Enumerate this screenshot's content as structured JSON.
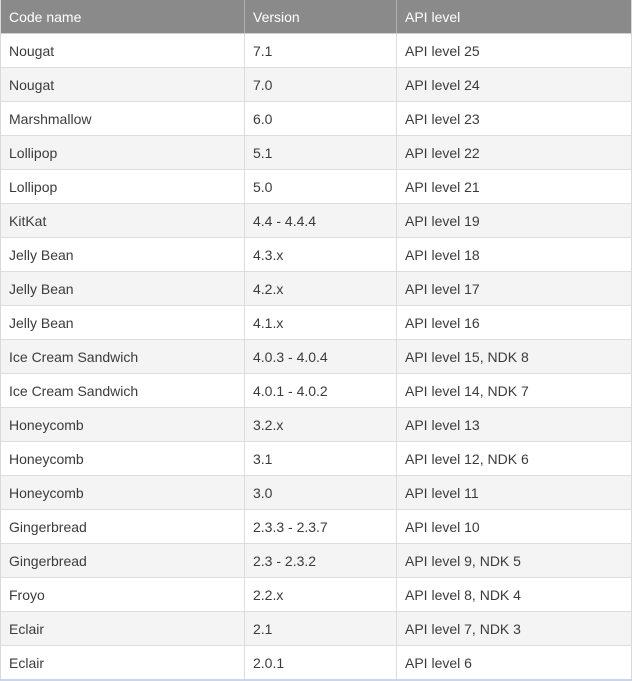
{
  "table": {
    "headers": [
      "Code name",
      "Version",
      "API level"
    ],
    "rows": [
      [
        "Nougat",
        "7.1",
        "API level 25"
      ],
      [
        "Nougat",
        "7.0",
        "API level 24"
      ],
      [
        "Marshmallow",
        "6.0",
        "API level 23"
      ],
      [
        "Lollipop",
        "5.1",
        "API level 22"
      ],
      [
        "Lollipop",
        "5.0",
        "API level 21"
      ],
      [
        "KitKat",
        "4.4 - 4.4.4",
        "API level 19"
      ],
      [
        "Jelly Bean",
        "4.3.x",
        "API level 18"
      ],
      [
        "Jelly Bean",
        "4.2.x",
        "API level 17"
      ],
      [
        "Jelly Bean",
        "4.1.x",
        "API level 16"
      ],
      [
        "Ice Cream Sandwich",
        "4.0.3 - 4.0.4",
        "API level 15, NDK 8"
      ],
      [
        "Ice Cream Sandwich",
        "4.0.1 - 4.0.2",
        "API level 14, NDK 7"
      ],
      [
        "Honeycomb",
        "3.2.x",
        "API level 13"
      ],
      [
        "Honeycomb",
        "3.1",
        "API level 12, NDK 6"
      ],
      [
        "Honeycomb",
        "3.0",
        "API level 11"
      ],
      [
        "Gingerbread",
        "2.3.3 - 2.3.7",
        "API level 10"
      ],
      [
        "Gingerbread",
        "2.3 - 2.3.2",
        "API level 9, NDK 5"
      ],
      [
        "Froyo",
        "2.2.x",
        "API level 8, NDK 4"
      ],
      [
        "Eclair",
        "2.1",
        "API level 7, NDK 3"
      ],
      [
        "Eclair",
        "2.0.1",
        "API level 6"
      ]
    ]
  }
}
